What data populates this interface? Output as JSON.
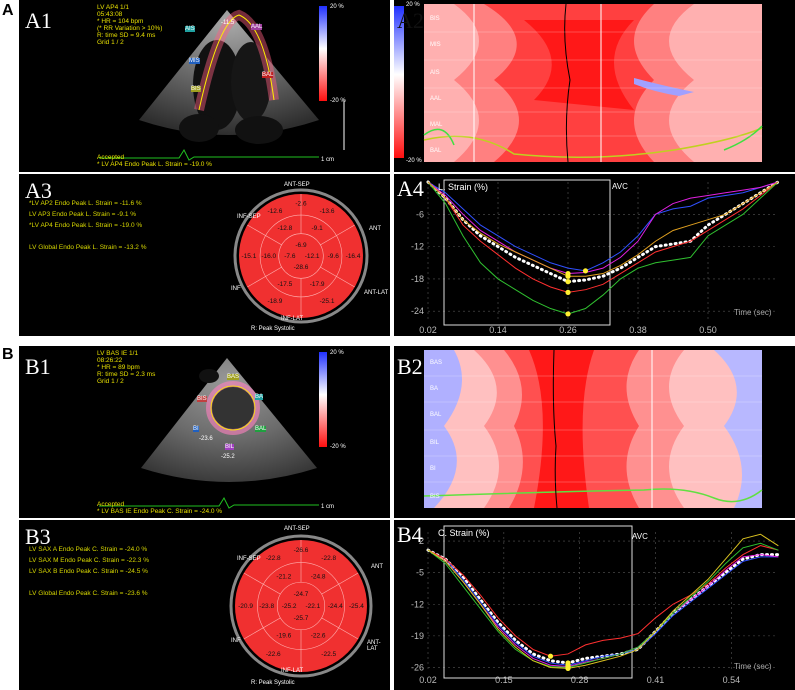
{
  "figure_letters": {
    "a": "A",
    "b": "B"
  },
  "panels": {
    "A1": {
      "label": "A1",
      "header": [
        "LV AP4 1/1",
        "05:43:08",
        "* HR = 104 bpm",
        "(* RR Variation > 10%)",
        "R: time SD = 9.4 ms",
        "Grid 1 / 2"
      ],
      "footer": [
        "Accepted",
        "* LV AP4 Endo Peak L. Strain = -19.0 %"
      ],
      "scale_top": "20 %",
      "scale_bottom": "-20 %",
      "scale_unit": "1 cm",
      "seg_labels": [
        "AAL",
        "AIS",
        "BAL",
        "BIS",
        "MIS",
        "-11.5"
      ]
    },
    "A2": {
      "label": "A2",
      "rows": [
        "BIS",
        "MIS",
        "AIS",
        "AAL",
        "MAL",
        "BAL"
      ],
      "scale_top": "20 %",
      "scale_bottom": "-20 %"
    },
    "A3": {
      "label": "A3",
      "lines": [
        "*LV AP2 Endo Peak L. Strain = -11.6 %",
        "LV AP3 Endo Peak L. Strain = -9.1 %",
        "*LV AP4 Endo Peak L. Strain = -19.0 %",
        "",
        "LV Global Endo Peak L. Strain = -13.2 %"
      ],
      "bull": {
        "top": "ANT-SEP",
        "right": "ANT",
        "br": "ANT-LAT",
        "bottom": "INF-LAT",
        "left": "INF",
        "tl": "INF-SEP",
        "footer": "R: Peak Systolic",
        "values": [
          "-2.6",
          "-9.1",
          "-9.6",
          "-17.9",
          "-17.5",
          "-16.0",
          "-12.8",
          "-13.6",
          "-16.4",
          "-25.1",
          "-18.9",
          "-15.1",
          "-12.6",
          "-6.9",
          "-12.1",
          "-28.6",
          "-7.6"
        ]
      }
    },
    "A4": {
      "label": "A4",
      "title": "L. Strain (%)",
      "avc": "AVC",
      "xlabel": "Time (sec)"
    },
    "B1": {
      "label": "B1",
      "header": [
        "LV BAS IE 1/1",
        "08:26:22",
        "* HR = 89 bpm",
        "R: time SD = 2.3 ms",
        "Grid 1 / 2"
      ],
      "footer": [
        "Accepted",
        "* LV BAS IE Endo Peak C. Strain = -24.0 %"
      ],
      "scale_top": "20 %",
      "scale_bottom": "-20 %",
      "scale_unit": "1 cm",
      "seg_labels": [
        "BAS",
        "BA",
        "BAL",
        "BIL",
        "BI",
        "BIS",
        "-23.6",
        "-25.2"
      ]
    },
    "B2": {
      "label": "B2",
      "rows": [
        "BAS",
        "BA",
        "BAL",
        "BIL",
        "BI",
        "BIS"
      ]
    },
    "B3": {
      "label": "B3",
      "lines": [
        "LV SAX A Endo Peak C. Strain = -24.0 %",
        "LV SAX M Endo Peak C. Strain = -22.3 %",
        "LV SAX B Endo Peak C. Strain = -24.5 %",
        "",
        "LV Global Endo Peak C. Strain = -23.6 %"
      ],
      "bull": {
        "top": "ANT-SEP",
        "right": "ANT",
        "br": "ANT-LAT",
        "bottom": "INF-LAT",
        "left": "INF",
        "tl": "INF-SEP",
        "footer": "R: Peak Systolic",
        "values": [
          "-26.6",
          "-24.8",
          "-24.4",
          "-22.6",
          "-19.6",
          "-23.8",
          "-21.2",
          "-22.8",
          "-25.4",
          "-22.5",
          "-22.6",
          "-20.9",
          "-22.8",
          "-24.7",
          "-22.1",
          "-25.7",
          "-25.2"
        ]
      }
    },
    "B4": {
      "label": "B4",
      "title": "C. Strain (%)",
      "avc": "AVC",
      "xlabel": "Time (sec)"
    }
  },
  "chart_data": [
    {
      "type": "line",
      "title": "L. Strain (%)",
      "xlabel": "Time (sec)",
      "ylabel": "",
      "xticks": [
        "0.02",
        "0.14",
        "0.26",
        "0.38",
        "0.50"
      ],
      "yticks": [
        "-6",
        "-12",
        "-18",
        "-24"
      ],
      "xlim": [
        0.02,
        0.62
      ],
      "ylim": [
        -26,
        0
      ],
      "x": [
        0.02,
        0.05,
        0.08,
        0.11,
        0.14,
        0.17,
        0.2,
        0.23,
        0.26,
        0.29,
        0.32,
        0.35,
        0.38,
        0.41,
        0.44,
        0.47,
        0.5,
        0.53,
        0.56,
        0.59,
        0.62
      ],
      "series": [
        {
          "color": "#ffffff",
          "values": [
            0,
            -3,
            -7,
            -10,
            -12,
            -14,
            -15.5,
            -17,
            -18.5,
            -18.2,
            -17.5,
            -16,
            -14,
            -12,
            -11.5,
            -11,
            -8,
            -6,
            -4,
            -2,
            0
          ]
        },
        {
          "color": "#3050ff",
          "values": [
            0,
            -2,
            -5,
            -8,
            -10,
            -12,
            -13.5,
            -15,
            -16,
            -16.5,
            -15,
            -13,
            -10,
            -6,
            -5,
            -4.5,
            -3,
            -2.5,
            -2,
            -1,
            0
          ]
        },
        {
          "color": "#e020e0",
          "values": [
            0,
            -2.5,
            -6,
            -9,
            -11,
            -13,
            -14.5,
            -16,
            -17,
            -16.8,
            -16,
            -14,
            -11,
            -6,
            -4,
            -3,
            -2.5,
            -2,
            -1.5,
            -1,
            0
          ]
        },
        {
          "color": "#ff3030",
          "values": [
            0,
            -3,
            -8,
            -11,
            -13.5,
            -16,
            -18,
            -19.5,
            -20.5,
            -20,
            -19,
            -17,
            -15,
            -13,
            -12,
            -11,
            -9,
            -7,
            -5,
            -2.5,
            0
          ]
        },
        {
          "color": "#30c030",
          "values": [
            0,
            -4,
            -10,
            -15,
            -18,
            -20,
            -22,
            -23.5,
            -24.5,
            -23.5,
            -21,
            -18,
            -16,
            -15,
            -14.5,
            -14,
            -10,
            -8,
            -6,
            -3,
            0
          ]
        },
        {
          "color": "#e0a020",
          "values": [
            0,
            -3,
            -7,
            -9.5,
            -11.5,
            -13,
            -14.5,
            -16,
            -17.5,
            -17.5,
            -17,
            -15.5,
            -13.5,
            -11,
            -9,
            -8,
            -7,
            -6,
            -4,
            -2,
            0
          ]
        }
      ]
    },
    {
      "type": "line",
      "title": "C. Strain (%)",
      "xlabel": "Time (sec)",
      "ylabel": "",
      "xticks": [
        "0.02",
        "0.15",
        "0.28",
        "0.41",
        "0.54"
      ],
      "yticks": [
        "2",
        "-5",
        "-12",
        "-19",
        "-26"
      ],
      "xlim": [
        0.02,
        0.62
      ],
      "ylim": [
        -27,
        4
      ],
      "x": [
        0.02,
        0.05,
        0.08,
        0.11,
        0.14,
        0.17,
        0.2,
        0.23,
        0.26,
        0.29,
        0.32,
        0.35,
        0.38,
        0.41,
        0.44,
        0.47,
        0.5,
        0.53,
        0.56,
        0.59,
        0.62
      ],
      "series": [
        {
          "color": "#ffffff",
          "values": [
            0,
            -2,
            -6,
            -11,
            -16,
            -20,
            -23,
            -24.5,
            -25,
            -24,
            -23.5,
            -23,
            -22,
            -18,
            -14,
            -11,
            -8,
            -5,
            -2,
            -1,
            -1
          ]
        },
        {
          "color": "#3050ff",
          "values": [
            0,
            -2,
            -6.5,
            -11.5,
            -16.5,
            -20.5,
            -23.5,
            -25,
            -25.5,
            -24.5,
            -23.5,
            -23,
            -22,
            -18.5,
            -14.5,
            -11.5,
            -8.5,
            -5.5,
            -2.5,
            -1.5,
            -1.5
          ]
        },
        {
          "color": "#e020e0",
          "values": [
            0,
            -2.5,
            -7,
            -12,
            -17,
            -21,
            -24,
            -25.5,
            -25.8,
            -24.8,
            -24,
            -23,
            -21.5,
            -18,
            -14,
            -11,
            -8,
            -4.5,
            -1.5,
            -1,
            -1.5
          ]
        },
        {
          "color": "#ff3030",
          "values": [
            0,
            -2,
            -5.5,
            -10,
            -15,
            -19,
            -22,
            -23.5,
            -23,
            -21,
            -20,
            -19.5,
            -18.5,
            -15,
            -12,
            -10,
            -7.5,
            -4,
            -1,
            1,
            0
          ]
        },
        {
          "color": "#30c030",
          "values": [
            0,
            -3,
            -8,
            -13,
            -18,
            -22,
            -24.5,
            -25.8,
            -26,
            -25,
            -24,
            -23,
            -21.5,
            -18,
            -14,
            -10.5,
            -7,
            -3,
            0.5,
            1.5,
            0
          ]
        },
        {
          "color": "#d8c020",
          "values": [
            0,
            -2.5,
            -7,
            -12,
            -17.5,
            -21.5,
            -24.5,
            -26,
            -26.2,
            -25.5,
            -24.5,
            -23.5,
            -22,
            -18,
            -13.5,
            -10,
            -6.5,
            -2,
            2.5,
            3.5,
            1
          ]
        }
      ]
    }
  ]
}
